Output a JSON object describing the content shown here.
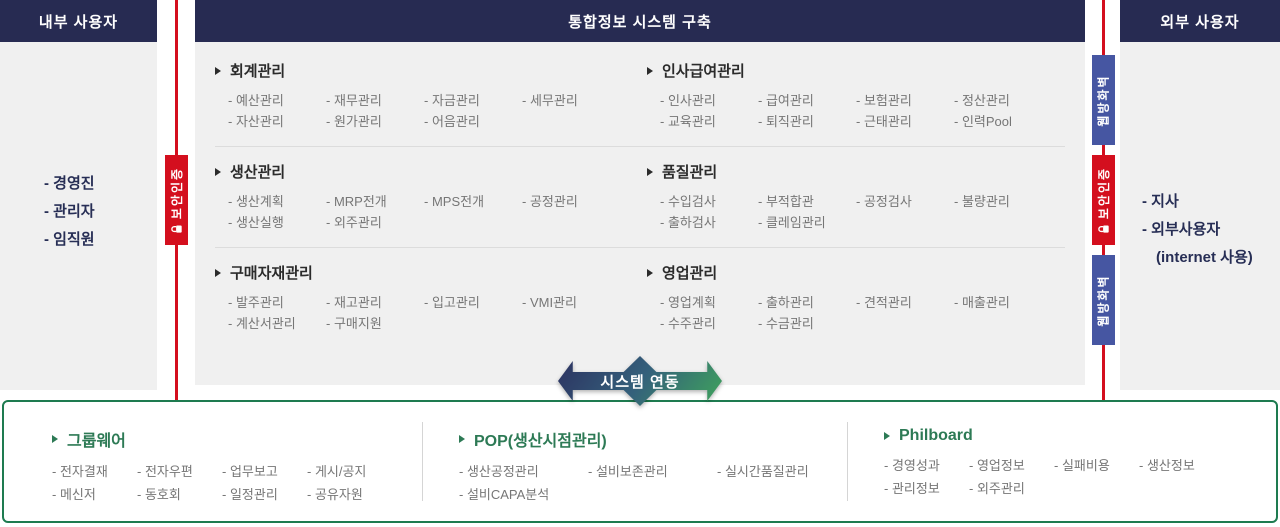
{
  "panels": {
    "internal": {
      "title": "내부 사용자",
      "items": [
        "- 경영진",
        "- 관리자",
        "- 임직원"
      ]
    },
    "external": {
      "title": "외부 사용자",
      "items": [
        "- 지사",
        "- 외부사용자",
        "(internet 사용)"
      ]
    }
  },
  "center": {
    "title": "통합정보 시스템 구축",
    "modules": [
      {
        "name": "회계관리",
        "items": [
          "- 예산관리",
          "- 재무관리",
          "- 자금관리",
          "- 세무관리",
          "- 자산관리",
          "- 원가관리",
          "- 어음관리"
        ]
      },
      {
        "name": "인사급여관리",
        "items": [
          "- 인사관리",
          "- 급여관리",
          "- 보험관리",
          "- 정산관리",
          "- 교육관리",
          "- 퇴직관리",
          "- 근태관리",
          "- 인력Pool"
        ]
      },
      {
        "name": "생산관리",
        "items": [
          "- 생산계획",
          "- MRP전개",
          "- MPS전개",
          "- 공정관리",
          "- 생산실행",
          "- 외주관리"
        ]
      },
      {
        "name": "품질관리",
        "items": [
          "- 수입검사",
          "- 부적합관",
          "- 공정검사",
          "- 불량관리",
          "- 출하검사",
          "- 클레임관리"
        ]
      },
      {
        "name": "구매자재관리",
        "items": [
          "- 발주관리",
          "- 재고관리",
          "- 입고관리",
          "- VMI관리",
          "- 계산서관리",
          "- 구매지원"
        ]
      },
      {
        "name": "영업관리",
        "items": [
          "- 영업계획",
          "- 출하관리",
          "- 견적관리",
          "- 매출관리",
          "- 수주관리",
          "- 수금관리"
        ]
      }
    ]
  },
  "badges": {
    "security_label": "보안인증",
    "firewall_label": "웹방화벽",
    "security_icon": "lock-icon"
  },
  "connector": {
    "label": "시스템 연동"
  },
  "bottom": {
    "sections": [
      {
        "name": "그룹웨어",
        "items": [
          "- 전자결재",
          "- 전자우편",
          "- 업무보고",
          "- 게시/공지",
          "- 메신저",
          "- 동호회",
          "- 일정관리",
          "- 공유자원"
        ]
      },
      {
        "name": "POP(생산시점관리)",
        "items": [
          "- 생산공정관리",
          "- 설비보존관리",
          "- 실시간품질관리",
          "- 설비CAPA분석"
        ]
      },
      {
        "name": "Philboard",
        "items": [
          "- 경영성과",
          "- 영업정보",
          "- 실패비용",
          "- 생산정보",
          "- 관리정보",
          "- 외주관리"
        ]
      }
    ]
  },
  "colors": {
    "header_navy": "#272b52",
    "panel_gray": "#f0f0f0",
    "line_red": "#d40f1e",
    "badge_blue": "#4656a2",
    "green": "#1e7b50",
    "item_gray": "#767676"
  }
}
